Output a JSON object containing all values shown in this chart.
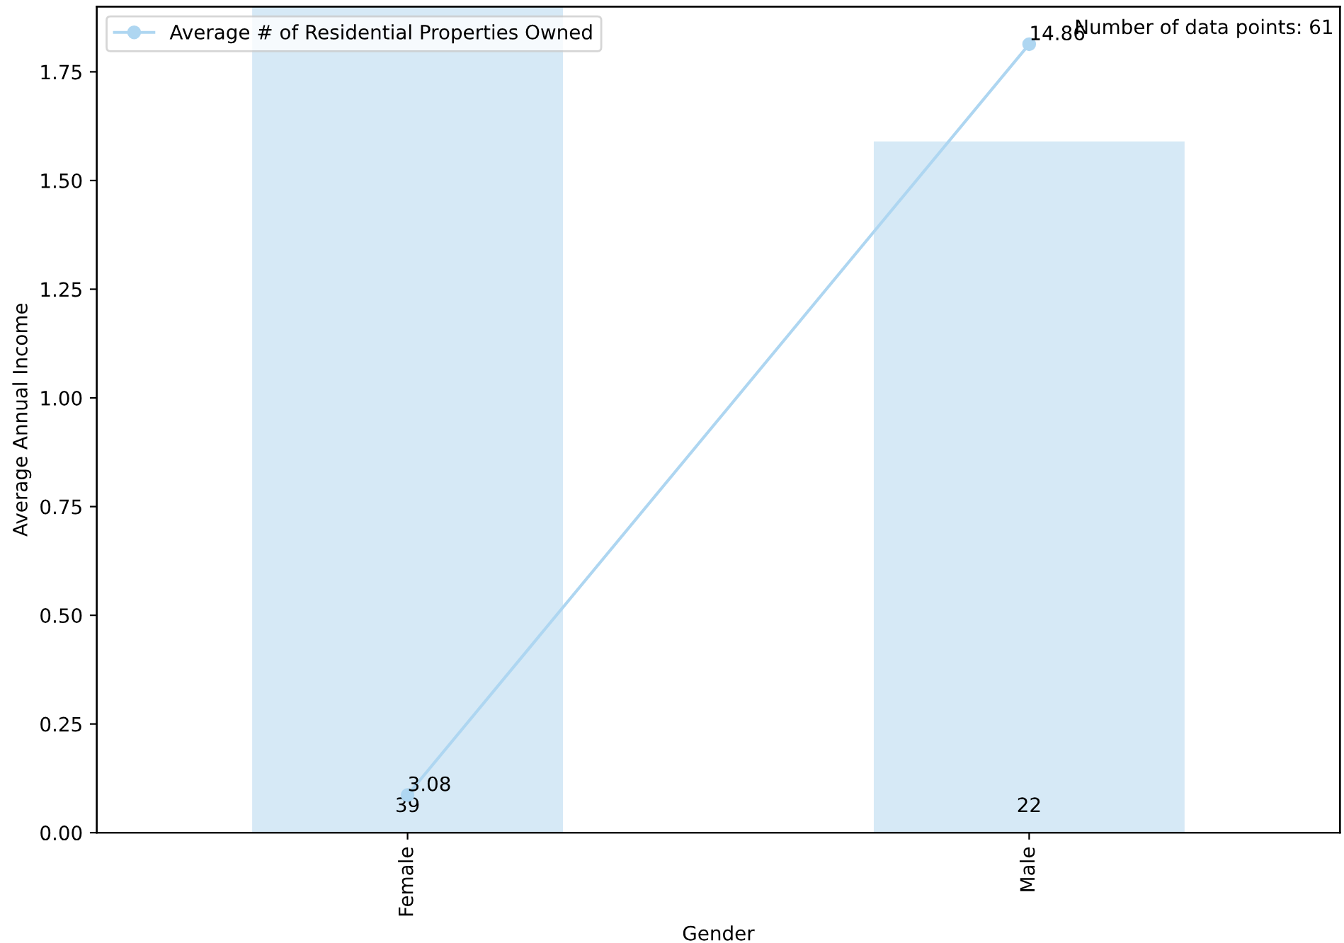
{
  "chart_data": {
    "type": "bar",
    "xlabel": "Gender",
    "ylabel": "Average Annual Income",
    "categories": [
      "Female",
      "Male"
    ],
    "series": [
      {
        "color": "#d6e9f6",
        "values": [
          1.9,
          1.59
        ]
      },
      {
        "type": "line",
        "name": "Average # of Residential Properties Owned",
        "color": "#aed6f1",
        "axis": "y2",
        "values": [
          3.08,
          14.86
        ],
        "value_labels": [
          "3.08",
          "14.86"
        ]
      }
    ],
    "ylim": [
      0,
      1.9
    ],
    "yticks": [
      {
        "value": 0,
        "label": "0.00"
      },
      0.25,
      {
        "value": 0.5,
        "label": "0.50"
      },
      0.75,
      {
        "value": 1,
        "label": "1.00"
      },
      1.25,
      {
        "value": 1.5,
        "label": "1.50"
      },
      1.75
    ],
    "y2lim": [
      2.49,
      15.45
    ],
    "marker": "circle",
    "legend": "top left",
    "grid": false,
    "annotations": [
      "39",
      "22",
      "Number of data points: 61"
    ]
  }
}
